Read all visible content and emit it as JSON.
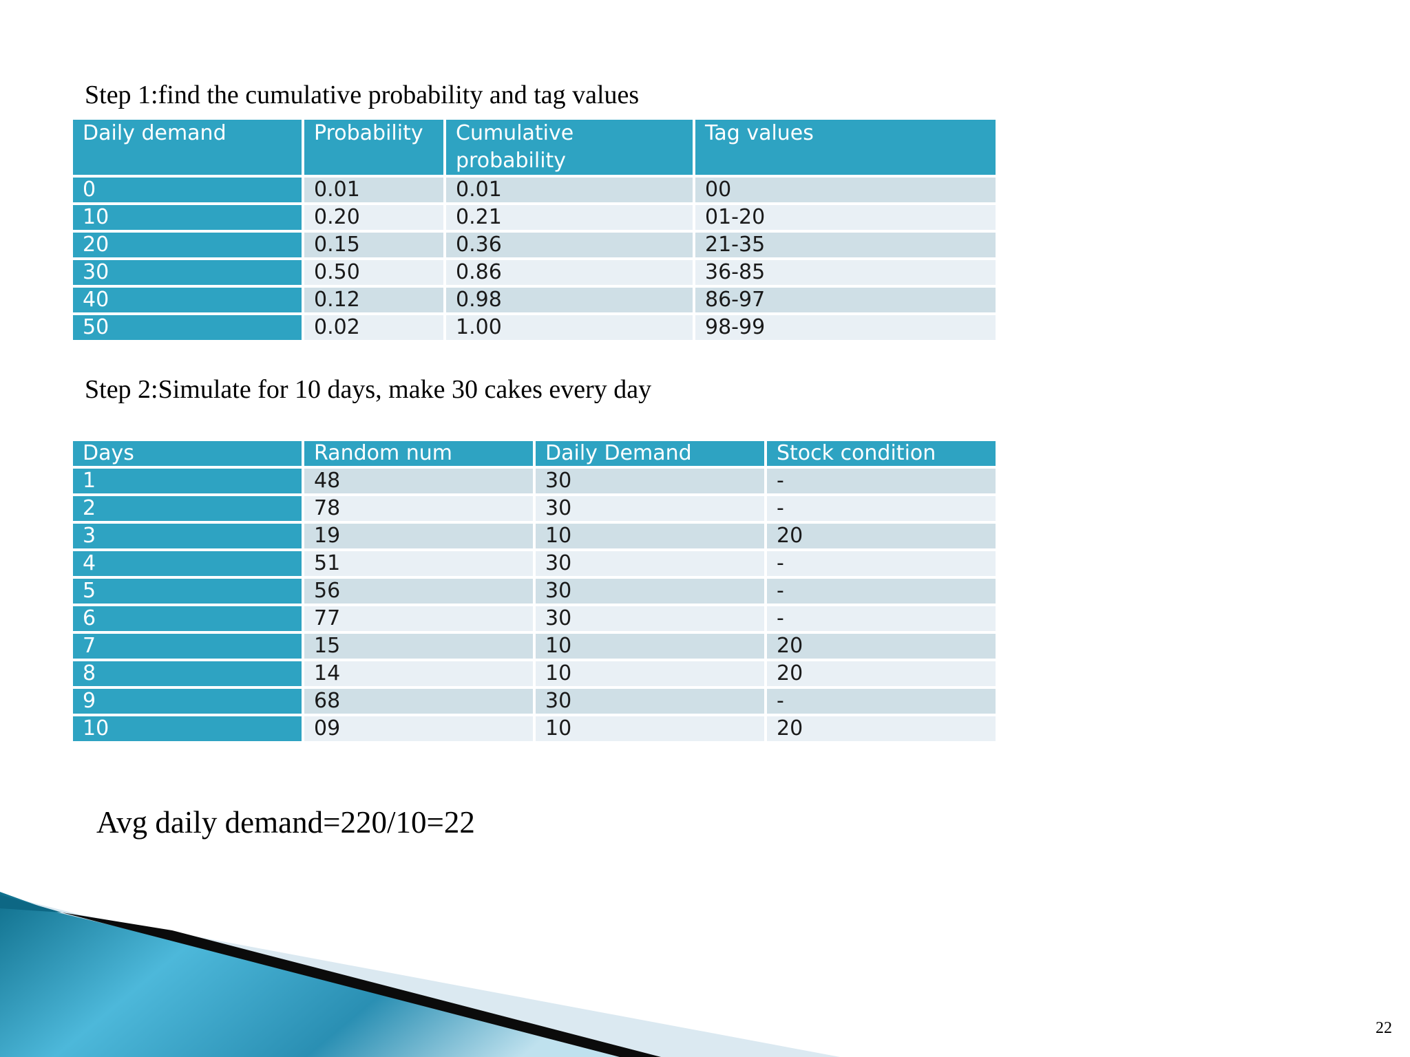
{
  "step1": {
    "heading": "Step 1:find the cumulative probability and tag values",
    "headers": [
      "Daily demand",
      "Probability",
      "Cumulative probability",
      "Tag values"
    ],
    "rows": [
      [
        "0",
        "0.01",
        "0.01",
        "00"
      ],
      [
        "10",
        "0.20",
        "0.21",
        "01-20"
      ],
      [
        "20",
        "0.15",
        "0.36",
        "21-35"
      ],
      [
        "30",
        "0.50",
        "0.86",
        "36-85"
      ],
      [
        "40",
        "0.12",
        "0.98",
        "86-97"
      ],
      [
        "50",
        "0.02",
        "1.00",
        "98-99"
      ]
    ]
  },
  "step2": {
    "heading": "Step 2:Simulate for 10 days, make 30 cakes every day",
    "headers": [
      "Days",
      "Random num",
      "Daily Demand",
      "Stock condition"
    ],
    "rows": [
      [
        "1",
        "48",
        "30",
        "-"
      ],
      [
        "2",
        "78",
        "30",
        "-"
      ],
      [
        "3",
        "19",
        "10",
        "20"
      ],
      [
        "4",
        "51",
        "30",
        "-"
      ],
      [
        "5",
        "56",
        "30",
        "-"
      ],
      [
        "6",
        "77",
        "30",
        "-"
      ],
      [
        "7",
        "15",
        "10",
        "20"
      ],
      [
        "8",
        "14",
        "10",
        "20"
      ],
      [
        "9",
        "68",
        "30",
        "-"
      ],
      [
        "10",
        "09",
        "10",
        "20"
      ]
    ]
  },
  "summary": "Avg daily demand=220/10=22",
  "page_number": "22",
  "colors": {
    "header_blue": "#2ea3c2",
    "row_dark": "#cfdfe6",
    "row_light": "#e9f0f5"
  }
}
